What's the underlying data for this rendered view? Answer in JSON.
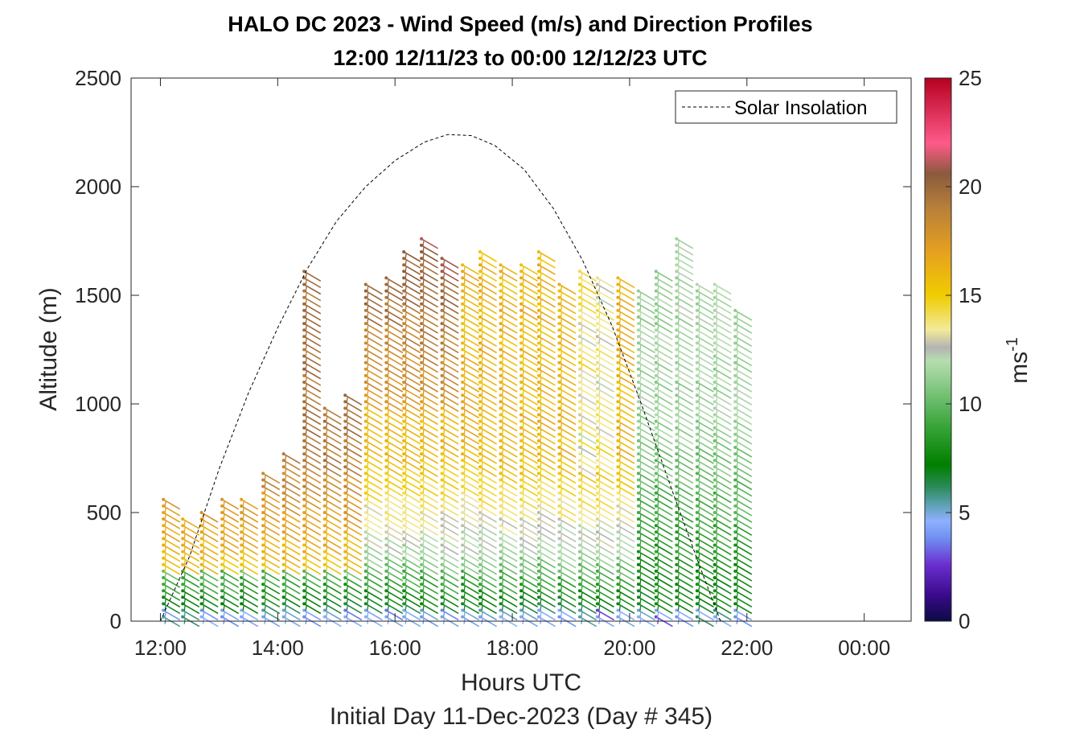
{
  "chart_data": {
    "type": "wind-barb-profile",
    "title": "HALO DC 2023 - Wind Speed (m/s) and Direction Profiles",
    "subtitle": "12:00 12/11/23 to 00:00 12/12/23  UTC",
    "xlabel": "Hours UTC",
    "xlabel2": "Initial Day 11-Dec-2023 (Day # 345)",
    "ylabel": "Altitude (m)",
    "xlim": [
      11.5,
      24.8
    ],
    "ylim": [
      0,
      2500
    ],
    "xticks": [
      12,
      14,
      16,
      18,
      20,
      22,
      24
    ],
    "xtick_labels": [
      "12:00",
      "14:00",
      "16:00",
      "18:00",
      "20:00",
      "22:00",
      "00:00"
    ],
    "yticks": [
      0,
      500,
      1000,
      1500,
      2000,
      2500
    ],
    "ytick_labels": [
      "0",
      "500",
      "1000",
      "1500",
      "2000",
      "2500"
    ],
    "legend": {
      "entries": [
        "Solar Insolation"
      ],
      "placement": "top-right"
    },
    "colorbar": {
      "label": "ms",
      "label_sup": "-1",
      "range": [
        0,
        25
      ],
      "ticks": [
        0,
        5,
        10,
        15,
        20,
        25
      ],
      "tick_labels": [
        "0",
        "5",
        "10",
        "15",
        "20",
        "25"
      ],
      "stops": [
        {
          "v": 0,
          "c": "#0b0b45"
        },
        {
          "v": 1.2,
          "c": "#3a0a8a"
        },
        {
          "v": 2.6,
          "c": "#6a2fd0"
        },
        {
          "v": 3.8,
          "c": "#6f8ef0"
        },
        {
          "v": 4.6,
          "c": "#8fb0ff"
        },
        {
          "v": 5.4,
          "c": "#5aa0b0"
        },
        {
          "v": 6.2,
          "c": "#2a8a55"
        },
        {
          "v": 7.2,
          "c": "#007f00"
        },
        {
          "v": 9.0,
          "c": "#3aa53a"
        },
        {
          "v": 11.0,
          "c": "#8ccc8c"
        },
        {
          "v": 12.0,
          "c": "#b6ddb0"
        },
        {
          "v": 12.6,
          "c": "#b3b3b3"
        },
        {
          "v": 13.4,
          "c": "#f2ea9a"
        },
        {
          "v": 15.0,
          "c": "#f0cc00"
        },
        {
          "v": 17.0,
          "c": "#e6a020"
        },
        {
          "v": 19.0,
          "c": "#b8803a"
        },
        {
          "v": 20.6,
          "c": "#8a5a3c"
        },
        {
          "v": 22.0,
          "c": "#ff5a8a"
        },
        {
          "v": 25.0,
          "c": "#b50020"
        }
      ]
    },
    "solar_insolation": {
      "style": "dashed",
      "points": [
        [
          12.0,
          0
        ],
        [
          12.5,
          300
        ],
        [
          13.0,
          700
        ],
        [
          13.5,
          1050
        ],
        [
          14.0,
          1350
        ],
        [
          14.5,
          1620
        ],
        [
          15.0,
          1840
        ],
        [
          15.5,
          2000
        ],
        [
          16.0,
          2120
        ],
        [
          16.5,
          2205
        ],
        [
          16.9,
          2240
        ],
        [
          17.3,
          2235
        ],
        [
          17.7,
          2190
        ],
        [
          18.2,
          2080
        ],
        [
          18.7,
          1900
        ],
        [
          19.2,
          1660
        ],
        [
          19.7,
          1360
        ],
        [
          20.2,
          1000
        ],
        [
          20.7,
          620
        ],
        [
          21.2,
          250
        ],
        [
          21.55,
          0
        ]
      ]
    },
    "wind_profiles": [
      {
        "t": 12.05,
        "top": 580
      },
      {
        "t": 12.38,
        "top": 490
      },
      {
        "t": 12.7,
        "top": 500
      },
      {
        "t": 13.05,
        "top": 580
      },
      {
        "t": 13.38,
        "top": 560
      },
      {
        "t": 13.75,
        "top": 690
      },
      {
        "t": 14.1,
        "top": 790
      },
      {
        "t": 14.45,
        "top": 1620
      },
      {
        "t": 14.8,
        "top": 980
      },
      {
        "t": 15.15,
        "top": 1060
      },
      {
        "t": 15.5,
        "top": 1570
      },
      {
        "t": 15.85,
        "top": 1600
      },
      {
        "t": 16.15,
        "top": 1710
      },
      {
        "t": 16.45,
        "top": 1780
      },
      {
        "t": 16.8,
        "top": 1690
      },
      {
        "t": 17.15,
        "top": 1650
      },
      {
        "t": 17.45,
        "top": 1700
      },
      {
        "t": 17.8,
        "top": 1650
      },
      {
        "t": 18.15,
        "top": 1660
      },
      {
        "t": 18.45,
        "top": 1700
      },
      {
        "t": 18.8,
        "top": 1550
      },
      {
        "t": 19.15,
        "top": 1620
      },
      {
        "t": 19.45,
        "top": 1580
      },
      {
        "t": 19.8,
        "top": 1580
      },
      {
        "t": 20.15,
        "top": 1540
      },
      {
        "t": 20.45,
        "top": 1620
      },
      {
        "t": 20.8,
        "top": 1780
      },
      {
        "t": 21.15,
        "top": 1570
      },
      {
        "t": 21.45,
        "top": 1560
      },
      {
        "t": 21.8,
        "top": 1450
      }
    ]
  }
}
